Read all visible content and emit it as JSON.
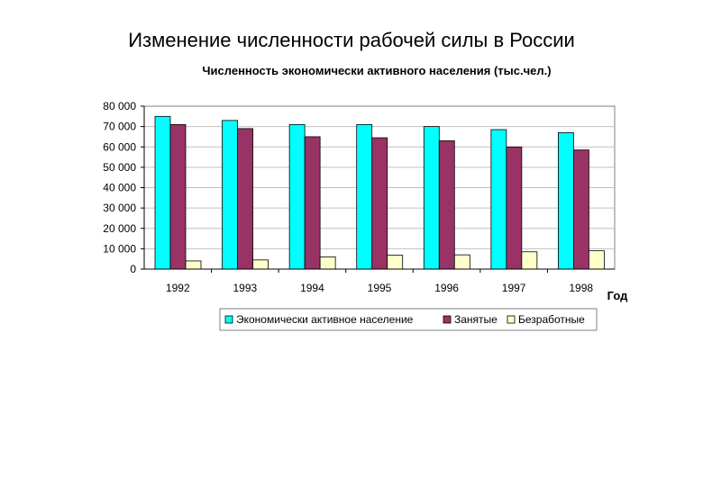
{
  "slide_title": "Изменение численности рабочей силы в России",
  "chart_data": {
    "type": "bar",
    "title": "Численность экономически активного населения (тыс.чел.)",
    "xlabel": "Год",
    "ylabel": "",
    "categories": [
      "1992",
      "1993",
      "1994",
      "1995",
      "1996",
      "1997",
      "1998"
    ],
    "ylim": [
      0,
      80000
    ],
    "yticks": [
      0,
      10000,
      20000,
      30000,
      40000,
      50000,
      60000,
      70000,
      80000
    ],
    "ytick_labels": [
      "0",
      "10 000",
      "20 000",
      "30 000",
      "40 000",
      "50 000",
      "60 000",
      "70 000",
      "80 000"
    ],
    "grid": true,
    "legend_position": "bottom",
    "series": [
      {
        "name": "Экономически активное население",
        "color": "#00FFFF",
        "values": [
          75000,
          73000,
          71000,
          71000,
          70000,
          68500,
          67000
        ]
      },
      {
        "name": "Занятые",
        "color": "#993366",
        "values": [
          71000,
          69000,
          65000,
          64500,
          63000,
          60000,
          58500
        ]
      },
      {
        "name": "Безработные",
        "color": "#FFFFCC",
        "values": [
          4000,
          4500,
          6000,
          6800,
          7000,
          8500,
          9000
        ]
      }
    ]
  }
}
